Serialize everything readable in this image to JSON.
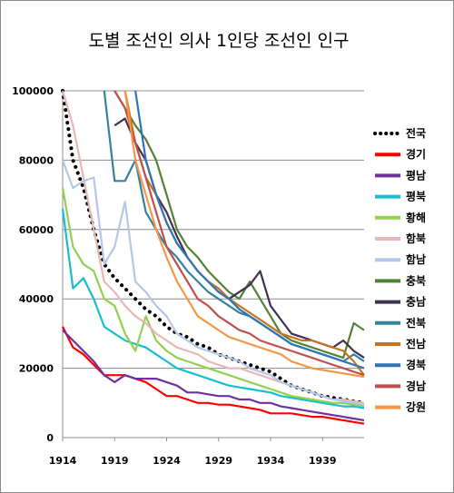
{
  "chart_data": {
    "type": "line",
    "title": "도별 조선인 의사 1인당 조선인 인구",
    "xlabel": "",
    "ylabel": "",
    "xlim": [
      1914,
      1943
    ],
    "ylim": [
      0,
      100000
    ],
    "x_ticks": [
      "1914",
      "1919",
      "1924",
      "1929",
      "1934",
      "1939"
    ],
    "y_ticks": [
      "0",
      "20000",
      "40000",
      "60000",
      "80000",
      "100000"
    ],
    "grid": true,
    "legend_position": "right",
    "x": [
      1914,
      1915,
      1916,
      1917,
      1918,
      1919,
      1920,
      1921,
      1922,
      1923,
      1924,
      1925,
      1926,
      1927,
      1928,
      1929,
      1930,
      1931,
      1932,
      1933,
      1934,
      1935,
      1936,
      1937,
      1938,
      1939,
      1940,
      1941,
      1942,
      1943
    ],
    "series": [
      {
        "name": "전국",
        "color": "#000000",
        "dashed": true,
        "values": [
          100000,
          80000,
          72000,
          60000,
          50000,
          46000,
          43000,
          40000,
          37000,
          35000,
          32000,
          30000,
          29000,
          27000,
          26000,
          24000,
          23000,
          22000,
          21000,
          20000,
          19000,
          17000,
          15000,
          14000,
          13000,
          12000,
          11500,
          11000,
          10500,
          10000
        ]
      },
      {
        "name": "경기",
        "color": "#ff0000",
        "values": [
          32000,
          26000,
          24000,
          21000,
          18000,
          18000,
          18000,
          17000,
          16000,
          14000,
          12000,
          12000,
          11000,
          10000,
          10000,
          9500,
          9500,
          9000,
          8500,
          8000,
          7000,
          7000,
          7000,
          6500,
          6000,
          6000,
          5500,
          5000,
          4500,
          4000
        ]
      },
      {
        "name": "평남",
        "color": "#7030a0",
        "values": [
          31000,
          28000,
          25000,
          22000,
          18000,
          16000,
          18000,
          17000,
          17000,
          17000,
          16000,
          15000,
          13000,
          13000,
          12500,
          12000,
          12000,
          11000,
          11000,
          10000,
          10000,
          9000,
          8500,
          8000,
          7500,
          7000,
          6500,
          6000,
          5500,
          5000
        ]
      },
      {
        "name": "평북",
        "color": "#17becf",
        "values": [
          66000,
          43000,
          46000,
          40000,
          32000,
          30000,
          28000,
          27000,
          26000,
          24000,
          22000,
          20000,
          19000,
          18000,
          17000,
          16000,
          15000,
          14500,
          14000,
          13500,
          13000,
          12000,
          11500,
          11000,
          10500,
          10000,
          9500,
          9000,
          9000,
          8500
        ]
      },
      {
        "name": "황해",
        "color": "#92d050",
        "values": [
          72000,
          55000,
          50000,
          48000,
          40000,
          38000,
          30000,
          25000,
          35000,
          28000,
          25000,
          23000,
          22000,
          21000,
          20000,
          19000,
          18000,
          17000,
          16000,
          15000,
          14000,
          13000,
          12000,
          11500,
          11000,
          10500,
          10000,
          10000,
          9500,
          9000
        ]
      },
      {
        "name": "함북",
        "color": "#e6b8b7",
        "values": [
          100000,
          90000,
          75000,
          60000,
          45000,
          42000,
          38000,
          35000,
          33000,
          30000,
          28000,
          26000,
          25000,
          24000,
          22000,
          21000,
          20000,
          20000,
          19000,
          18000,
          17000,
          16000,
          15000,
          14000,
          13000,
          12000,
          11000,
          11000,
          10500,
          10000
        ]
      },
      {
        "name": "함남",
        "color": "#b4c7e7",
        "values": [
          80000,
          72000,
          74000,
          75000,
          50000,
          55000,
          68000,
          45000,
          42000,
          38000,
          35000,
          30000,
          28000,
          26000,
          25000,
          24000,
          23000,
          22000,
          20000,
          19000,
          18000,
          16000,
          15000,
          14000,
          13000,
          12000,
          11000,
          10500,
          10000,
          9500
        ]
      },
      {
        "name": "충북",
        "color": "#548235",
        "values": [
          null,
          null,
          null,
          null,
          null,
          100000,
          95000,
          90000,
          86000,
          80000,
          70000,
          60000,
          55000,
          52000,
          48000,
          45000,
          42000,
          40000,
          45000,
          40000,
          35000,
          30000,
          28000,
          27000,
          26000,
          25000,
          24000,
          23000,
          33000,
          31000
        ]
      },
      {
        "name": "충남",
        "color": "#403151",
        "values": [
          null,
          null,
          null,
          null,
          null,
          90000,
          92000,
          85000,
          80000,
          70000,
          65000,
          58000,
          52000,
          48000,
          45000,
          42000,
          40000,
          42000,
          44000,
          48000,
          38000,
          34000,
          30000,
          29000,
          28000,
          27000,
          26000,
          28000,
          25000,
          23000
        ]
      },
      {
        "name": "전북",
        "color": "#31849b",
        "values": [
          null,
          null,
          null,
          null,
          100000,
          74000,
          74000,
          80000,
          65000,
          60000,
          55000,
          52000,
          48000,
          45000,
          42000,
          40000,
          38000,
          36000,
          35000,
          33000,
          31000,
          29000,
          27000,
          26000,
          25000,
          24000,
          23000,
          22000,
          24000,
          22000
        ]
      },
      {
        "name": "전남",
        "color": "#c9741d",
        "values": [
          null,
          null,
          null,
          null,
          null,
          null,
          100000,
          85000,
          75000,
          70000,
          62000,
          56000,
          52000,
          48000,
          45000,
          43000,
          40000,
          38000,
          36000,
          34000,
          32000,
          30000,
          29000,
          28000,
          28000,
          27000,
          26000,
          25000,
          22000,
          18000
        ]
      },
      {
        "name": "경북",
        "color": "#2e75b6",
        "values": [
          null,
          null,
          null,
          null,
          null,
          null,
          null,
          100000,
          80000,
          70000,
          62000,
          56000,
          52000,
          48000,
          45000,
          42000,
          40000,
          37000,
          35000,
          33000,
          31000,
          29000,
          27000,
          26000,
          25000,
          24000,
          23000,
          22000,
          21000,
          20000
        ]
      },
      {
        "name": "경남",
        "color": "#c0504d",
        "values": [
          null,
          null,
          null,
          null,
          null,
          100000,
          95000,
          85000,
          75000,
          65000,
          55000,
          50000,
          45000,
          40000,
          38000,
          35000,
          33000,
          31000,
          30000,
          28000,
          27000,
          26000,
          25000,
          24000,
          23000,
          22000,
          21000,
          20000,
          19000,
          18000
        ]
      },
      {
        "name": "강원",
        "color": "#f79646",
        "values": [
          null,
          null,
          null,
          null,
          null,
          null,
          100000,
          80000,
          70000,
          60000,
          52000,
          45000,
          40000,
          35000,
          33000,
          31000,
          29000,
          28000,
          27000,
          26000,
          25000,
          24000,
          22000,
          21000,
          20000,
          19500,
          19000,
          18500,
          18000,
          17500
        ]
      }
    ]
  }
}
